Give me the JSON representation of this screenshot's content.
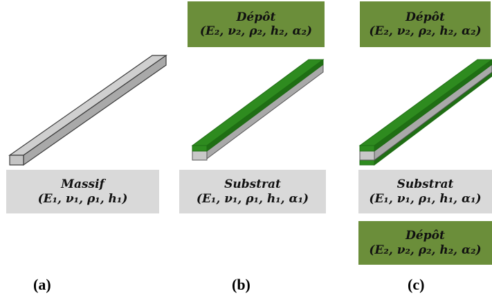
{
  "panels": [
    {
      "label": "(a)",
      "substrate": {
        "title": "Massif",
        "params": "(E₁, ν₁, ρ₁, h₁)"
      }
    },
    {
      "label": "(b)",
      "deposit": {
        "title": "Dépôt",
        "params": "(E₂, ν₂, ρ₂, h₂, α₂)"
      },
      "substrate": {
        "title": "Substrat",
        "params": "(E₁, ν₁, ρ₁, h₁, α₁)"
      }
    },
    {
      "label": "(c)",
      "deposit_top": {
        "title": "Dépôt",
        "params": "(E₂, ν₂, ρ₂, h₂, α₂)"
      },
      "substrate": {
        "title": "Substrat",
        "params": "(E₁, ν₁, ρ₁, h₁, α₁)"
      },
      "deposit_bottom": {
        "title": "Dépôt",
        "params": "(E₂, ν₂, ρ₂, h₂, α₂)"
      }
    }
  ],
  "colors": {
    "label_grey": "#d9d9d9",
    "label_green": "#6b8e3a",
    "beam_grey_top": "#cfcfcf",
    "beam_grey_front": "#c4c4c4",
    "beam_grey_side": "#a9a9a9",
    "coating_green": "#2e8b1f",
    "coating_green_dark": "#1f6e14"
  }
}
